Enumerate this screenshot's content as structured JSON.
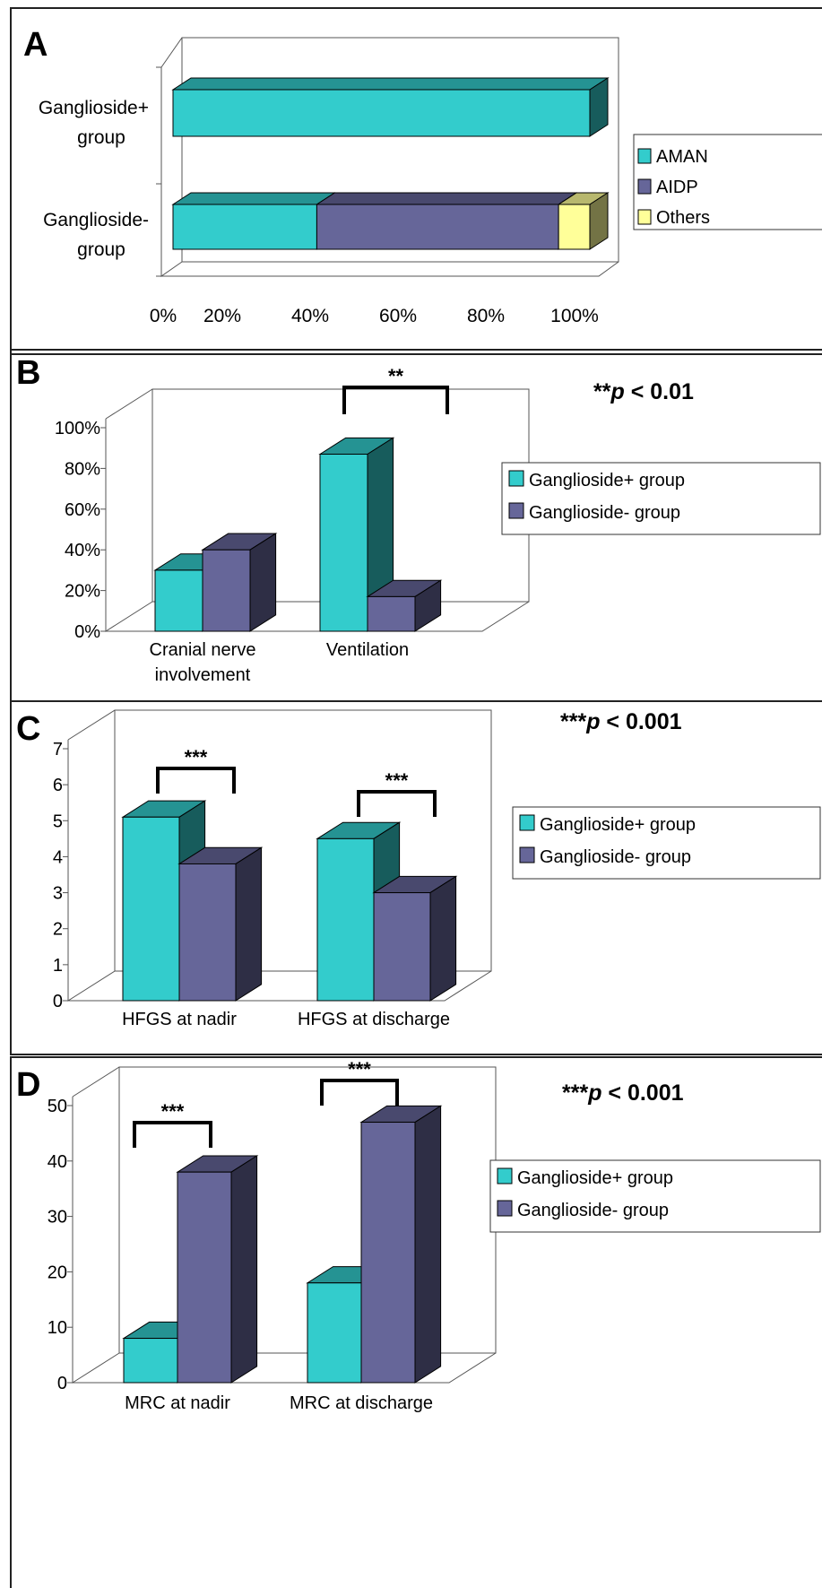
{
  "chart_data": [
    {
      "panel": "A",
      "type": "bar",
      "orientation": "horizontal",
      "stacked": true,
      "categories": [
        "Ganglioside+ group",
        "Ganglioside- group"
      ],
      "series": [
        {
          "name": "AMAN",
          "values": [
            100,
            34.5
          ]
        },
        {
          "name": "AIDP",
          "values": [
            0,
            58
          ]
        },
        {
          "name": "Others",
          "values": [
            0,
            7.5
          ]
        }
      ],
      "xlim": [
        0,
        100
      ],
      "xticks": [
        "0%",
        "20%",
        "40%",
        "60%",
        "80%",
        "100%"
      ],
      "legend": "right",
      "colors": {
        "AMAN": "#33cccc",
        "AIDP": "#666699",
        "Others": "#ffff99"
      }
    },
    {
      "panel": "B",
      "type": "bar",
      "categories": [
        "Cranial nerve involvement",
        "Ventilation"
      ],
      "series": [
        {
          "name": "Ganglioside+ group",
          "values": [
            30,
            87
          ]
        },
        {
          "name": "Ganglioside- group",
          "values": [
            40,
            17
          ]
        }
      ],
      "ylim": [
        0,
        100
      ],
      "yticks": [
        "0%",
        "20%",
        "40%",
        "60%",
        "80%",
        "100%"
      ],
      "annotation": "**p < 0.01",
      "significance": [
        {
          "category": "Ventilation",
          "label": "**"
        }
      ],
      "legend": "right",
      "colors": {
        "Ganglioside+ group": "#33cccc",
        "Ganglioside- group": "#666699"
      }
    },
    {
      "panel": "C",
      "type": "bar",
      "categories": [
        "HFGS at nadir",
        "HFGS at discharge"
      ],
      "series": [
        {
          "name": "Ganglioside+ group",
          "values": [
            5.1,
            4.5
          ]
        },
        {
          "name": "Ganglioside- group",
          "values": [
            3.8,
            3.0
          ]
        }
      ],
      "ylim": [
        0,
        7
      ],
      "yticks": [
        "0",
        "1",
        "2",
        "3",
        "4",
        "5",
        "6",
        "7"
      ],
      "annotation": "***p < 0.001",
      "significance": [
        {
          "category": "HFGS at nadir",
          "label": "***"
        },
        {
          "category": "HFGS at discharge",
          "label": "***"
        }
      ],
      "legend": "right",
      "colors": {
        "Ganglioside+ group": "#33cccc",
        "Ganglioside- group": "#666699"
      }
    },
    {
      "panel": "D",
      "type": "bar",
      "categories": [
        "MRC at nadir",
        "MRC at discharge"
      ],
      "series": [
        {
          "name": "Ganglioside+ group",
          "values": [
            8,
            18
          ]
        },
        {
          "name": "Ganglioside- group",
          "values": [
            38,
            47
          ]
        }
      ],
      "ylim": [
        0,
        50
      ],
      "yticks": [
        "0",
        "10",
        "20",
        "30",
        "40",
        "50"
      ],
      "annotation": "***p < 0.001",
      "significance": [
        {
          "category": "MRC at nadir",
          "label": "***"
        },
        {
          "category": "MRC at discharge",
          "label": "***"
        }
      ],
      "legend": "right",
      "colors": {
        "Ganglioside+ group": "#33cccc",
        "Ganglioside- group": "#666699"
      }
    }
  ]
}
